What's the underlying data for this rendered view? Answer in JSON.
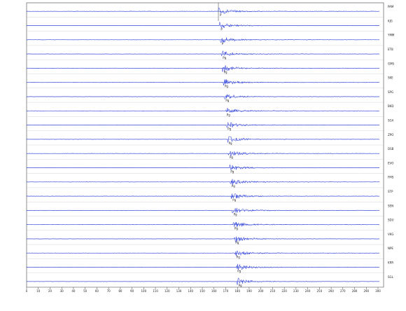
{
  "traces": [
    {
      "station": "PAM",
      "phase": "P"
    },
    {
      "station": "KJG",
      "phase": "P"
    },
    {
      "station": "YMM",
      "phase": "P"
    },
    {
      "station": "ETB",
      "phase": "Pg"
    },
    {
      "station": "GMS",
      "phase": "Pg"
    },
    {
      "station": "SKE",
      "phase": "Pg"
    },
    {
      "station": "SPG",
      "phase": "Pg"
    },
    {
      "station": "BKD",
      "phase": "Pg"
    },
    {
      "station": "SGA",
      "phase": "Pg"
    },
    {
      "station": "ZPO",
      "phase": "Pg"
    },
    {
      "station": "DSB",
      "phase": "Pg"
    },
    {
      "station": "EVO",
      "phase": "Pg"
    },
    {
      "station": "FMS",
      "phase": "Pg"
    },
    {
      "station": "STP",
      "phase": "Pg"
    },
    {
      "station": "SEN",
      "phase": "Pg"
    },
    {
      "station": "SDU",
      "phase": "Pg"
    },
    {
      "station": "VKG",
      "phase": "Pg"
    },
    {
      "station": "NPE",
      "phase": "Pg"
    },
    {
      "station": "KRR",
      "phase": "Pg"
    },
    {
      "station": "SGL",
      "phase": "Pg"
    }
  ],
  "x_axis": {
    "ticks": [
      0,
      10,
      20,
      30,
      40,
      50,
      60,
      70,
      80,
      90,
      100,
      110,
      120,
      130,
      140,
      150,
      160,
      170,
      180,
      190,
      200,
      210,
      220,
      230,
      240,
      250,
      260,
      270,
      280,
      290,
      300
    ]
  }
}
